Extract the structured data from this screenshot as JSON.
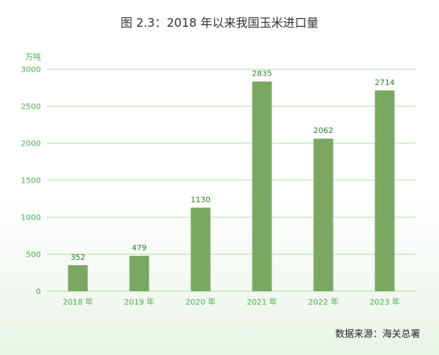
{
  "chart_data": {
    "type": "bar",
    "title": "图 2.3：2018 年以来我国玉米进口量",
    "unit_label": "万吨",
    "categories": [
      "2018 年",
      "2019 年",
      "2020 年",
      "2021 年",
      "2022 年",
      "2023 年"
    ],
    "values": [
      352,
      479,
      1130,
      2835,
      2062,
      2714
    ],
    "data_labels": [
      "352",
      "479",
      "1130",
      "2835",
      "2062",
      "2714"
    ],
    "ylim": [
      0,
      3000
    ],
    "yticks": [
      0,
      500,
      1000,
      1500,
      2000,
      2500,
      3000
    ],
    "ytick_labels": [
      "0",
      "500",
      "1000",
      "1500",
      "2000",
      "2500",
      "3000"
    ],
    "grid": true,
    "legend": "none",
    "bar_color": "#7aa862",
    "grid_color": "#b5e0a6",
    "label_color": "#4caf50"
  },
  "source": "数据来源：海关总署"
}
